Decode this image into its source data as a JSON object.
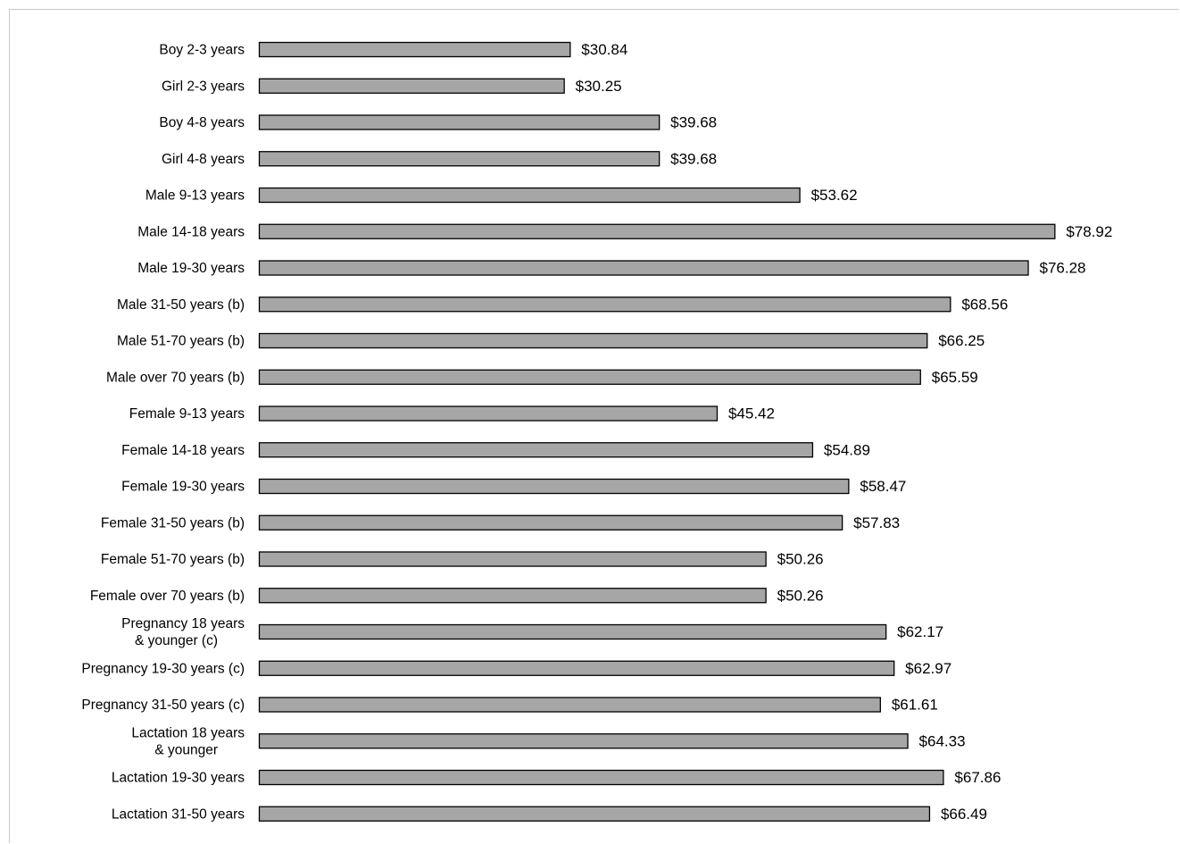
{
  "colors": {
    "bar_fill": "#a6a6a6",
    "bar_stroke": "#000000",
    "text": "#000000",
    "background": "#ffffff"
  },
  "chart_data": {
    "type": "bar",
    "orientation": "horizontal",
    "value_prefix": "$",
    "grid": false,
    "legend": "none",
    "xlim": [
      0,
      80
    ],
    "categories": [
      [
        "Boy 2-3 years"
      ],
      [
        "Girl 2-3 years"
      ],
      [
        "Boy 4-8 years"
      ],
      [
        "Girl 4-8 years"
      ],
      [
        "Male 9-13 years"
      ],
      [
        "Male 14-18 years"
      ],
      [
        "Male 19-30 years"
      ],
      [
        "Male 31-50 years (b)"
      ],
      [
        "Male 51-70 years (b)"
      ],
      [
        "Male over 70 years (b)"
      ],
      [
        "Female 9-13 years"
      ],
      [
        "Female 14-18 years"
      ],
      [
        "Female 19-30 years"
      ],
      [
        "Female 31-50 years (b)"
      ],
      [
        "Female 51-70 years (b)"
      ],
      [
        "Female over 70 years (b)"
      ],
      [
        "Pregnancy 18 years",
        "& younger (c)"
      ],
      [
        "Pregnancy 19-30 years (c)"
      ],
      [
        "Pregnancy 31-50 years (c)"
      ],
      [
        "Lactation 18 years",
        "& younger"
      ],
      [
        "Lactation 19-30 years"
      ],
      [
        "Lactation 31-50 years"
      ]
    ],
    "values": [
      30.84,
      30.25,
      39.68,
      39.68,
      53.62,
      78.92,
      76.28,
      68.56,
      66.25,
      65.59,
      45.42,
      54.89,
      58.47,
      57.83,
      50.26,
      50.26,
      62.17,
      62.97,
      61.61,
      64.33,
      67.86,
      66.49
    ],
    "value_labels": [
      "$30.84",
      "$30.25",
      "$39.68",
      "$39.68",
      "$53.62",
      "$78.92",
      "$76.28",
      "$68.56",
      "$66.25",
      "$65.59",
      "$45.42",
      "$54.89",
      "$58.47",
      "$57.83",
      "$50.26",
      "$50.26",
      "$62.17",
      "$62.97",
      "$61.61",
      "$64.33",
      "$67.86",
      "$66.49"
    ]
  }
}
